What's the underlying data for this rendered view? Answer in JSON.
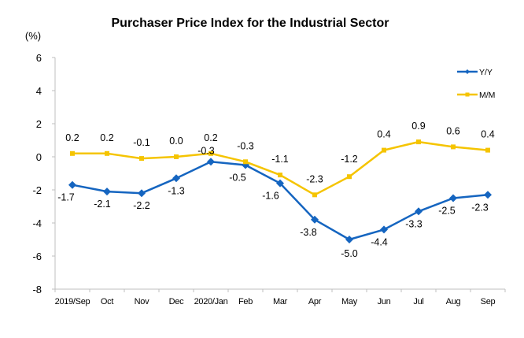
{
  "chart_data": {
    "type": "line",
    "title": "Purchaser Price Index for the Industrial  Sector",
    "ylabel": "(%)",
    "xlabel": "",
    "categories": [
      "2019/Sep",
      "Oct",
      "Nov",
      "Dec",
      "2020/Jan",
      "Feb",
      "Mar",
      "Apr",
      "May",
      "Jun",
      "Jul",
      "Aug",
      "Sep"
    ],
    "ylim": [
      -8,
      6
    ],
    "yticks": [
      6,
      4,
      2,
      0,
      -2,
      -4,
      -6,
      -8
    ],
    "grid": false,
    "legend_position": "top-right",
    "series": [
      {
        "name": "Y/Y",
        "color": "#1565c0",
        "marker": "diamond",
        "values": [
          -1.7,
          -2.1,
          -2.2,
          -1.3,
          -0.3,
          -0.5,
          -1.6,
          -3.8,
          -5.0,
          -4.4,
          -3.3,
          -2.5,
          -2.3
        ],
        "labels": [
          "-1.7",
          "-2.1",
          "-2.2",
          "-1.3",
          "-0.3",
          "-0.5",
          "-1.6",
          "-3.8",
          "-5.0",
          "-4.4",
          "-3.3",
          "-2.5",
          "-2.3"
        ]
      },
      {
        "name": "M/M",
        "color": "#f5c400",
        "marker": "square",
        "values": [
          0.2,
          0.2,
          -0.1,
          0.0,
          0.2,
          -0.3,
          -1.1,
          -2.3,
          -1.2,
          0.4,
          0.9,
          0.6,
          0.4
        ],
        "labels": [
          "0.2",
          "0.2",
          "-0.1",
          "0.0",
          "0.2",
          "-0.3",
          "-1.1",
          "-2.3",
          "-1.2",
          "0.4",
          "0.9",
          "0.6",
          "0.4"
        ]
      }
    ]
  }
}
